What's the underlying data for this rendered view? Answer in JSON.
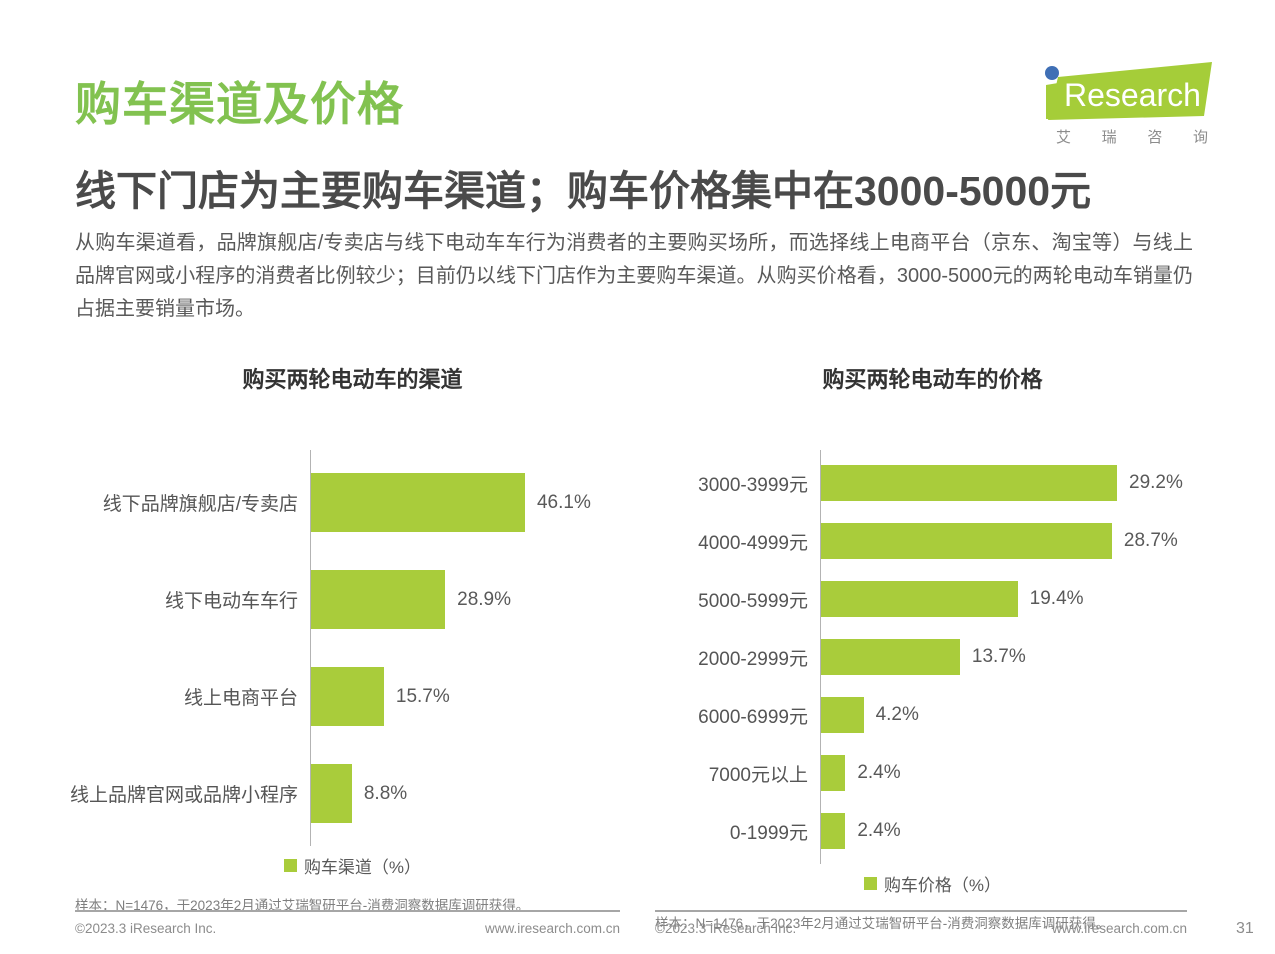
{
  "page": {
    "title": "购车渠道及价格",
    "subtitle": "线下门店为主要购车渠道；购车价格集中在3000-5000元",
    "body": "从购车渠道看，品牌旗舰店/专卖店与线下电动车车行为消费者的主要购买场所，而选择线上电商平台（京东、淘宝等）与线上品牌官网或小程序的消费者比例较少；目前仍以线下门店作为主要购车渠道。从购买价格看，3000-5000元的两轮电动车销量仍占据主要销量市场。"
  },
  "logo": {
    "brand": "iResearch",
    "research_text": "Research",
    "cn": [
      "艾",
      "瑞",
      "咨",
      "询"
    ]
  },
  "colors": {
    "accent_green": "#82c250",
    "bar_green": "#a9cc3b",
    "logo_green": "#a5cd39",
    "logo_blue": "#3f6fb5"
  },
  "chart_data": [
    {
      "type": "bar",
      "orientation": "horizontal",
      "title": "购买两轮电动车的渠道",
      "unit": "%",
      "categories": [
        "线下品牌旗舰店/专卖店",
        "线下电动车车行",
        "线上电商平台",
        "线上品牌官网或品牌小程序"
      ],
      "values": [
        46.1,
        28.9,
        15.7,
        8.8
      ],
      "value_labels": [
        "46.1%",
        "28.9%",
        "15.7%",
        "8.8%"
      ],
      "xlim": [
        0,
        50
      ],
      "grid": false,
      "legend": "购车渠道（%）",
      "legend_position": "bottom",
      "note": "样本：N=1476，于2023年2月通过艾瑞智研平台-消费洞察数据库调研获得。"
    },
    {
      "type": "bar",
      "orientation": "horizontal",
      "title": "购买两轮电动车的价格",
      "unit": "%",
      "categories": [
        "3000-3999元",
        "4000-4999元",
        "5000-5999元",
        "2000-2999元",
        "6000-6999元",
        "7000元以上",
        "0-1999元"
      ],
      "values": [
        29.2,
        28.7,
        19.4,
        13.7,
        4.2,
        2.4,
        2.4
      ],
      "value_labels": [
        "29.2%",
        "28.7%",
        "19.4%",
        "13.7%",
        "4.2%",
        "2.4%",
        "2.4%"
      ],
      "xlim": [
        0,
        30
      ],
      "grid": false,
      "legend": "购车价格（%）",
      "legend_position": "bottom",
      "note": "样本：N=1476，于2023年2月通过艾瑞智研平台-消费洞察数据库调研获得。"
    }
  ],
  "footers": [
    {
      "copyright": "©2023.3 iResearch Inc.",
      "url": "www.iresearch.com.cn"
    },
    {
      "copyright": "©2023.3 iResearch Inc.",
      "url": "www.iresearch.com.cn"
    }
  ],
  "page_number": "31"
}
